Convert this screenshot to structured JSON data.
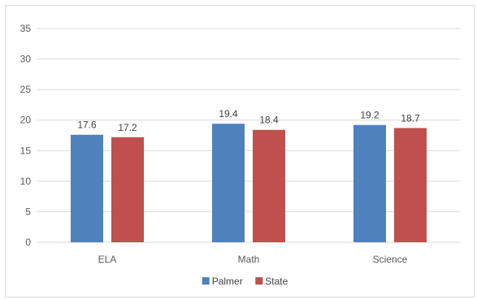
{
  "chart_data": {
    "type": "bar",
    "title": "",
    "xlabel": "",
    "ylabel": "",
    "categories": [
      "ELA",
      "Math",
      "Science"
    ],
    "series": [
      {
        "name": "Palmer",
        "values": [
          17.6,
          19.4,
          19.2
        ],
        "color": "#4f81bd"
      },
      {
        "name": "State",
        "values": [
          17.2,
          18.4,
          18.7
        ],
        "color": "#c0504d"
      }
    ],
    "yticks": [
      "0",
      "5",
      "10",
      "15",
      "20",
      "25",
      "30",
      "35"
    ],
    "ylim": [
      0,
      35
    ],
    "data_labels": [
      [
        "17.6",
        "19.4",
        "19.2"
      ],
      [
        "17.2",
        "18.4",
        "18.7"
      ]
    ],
    "grid": true,
    "legend": "bottom",
    "gridline_color": "#d9d9d9"
  }
}
